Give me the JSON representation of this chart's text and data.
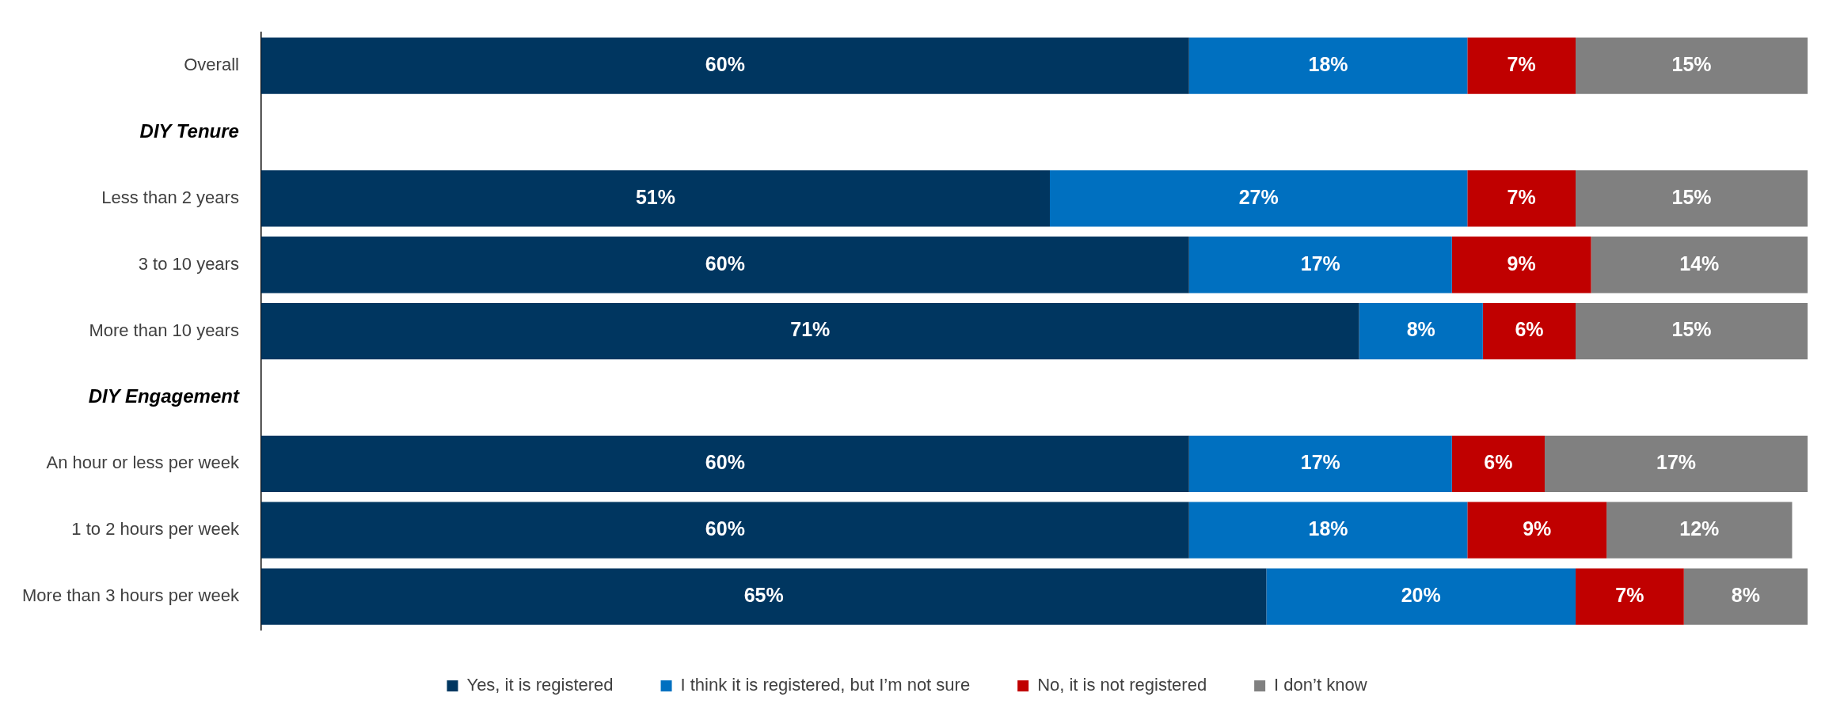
{
  "chart_data": {
    "type": "bar",
    "orientation": "horizontal",
    "stacked": true,
    "legend": "bottom",
    "tick_labels": "y",
    "categories": [
      "Overall",
      "DIY Tenure",
      "Less than 2 years",
      "3 to 10 years",
      "More than 10 years",
      "DIY Engagement",
      "An hour or less per week",
      "1 to 2 hours per week",
      "More than 3 hours per week"
    ],
    "series": [
      {
        "name": "Yes, it is registered",
        "color": "#003660",
        "values": [
          60,
          null,
          51,
          60,
          71,
          null,
          60,
          60,
          65
        ],
        "value_labels": [
          "60%",
          null,
          "51%",
          "60%",
          "71%",
          null,
          "60%",
          "60%",
          "65%"
        ]
      },
      {
        "name": "I think it is registered, but I’m not sure",
        "color": "#0070c0",
        "values": [
          18,
          null,
          27,
          17,
          8,
          null,
          17,
          18,
          20
        ],
        "value_labels": [
          "18%",
          null,
          "27%",
          "17%",
          "8%",
          null,
          "17%",
          "18%",
          "20%"
        ]
      },
      {
        "name": "No, it is not registered",
        "color": "#c00000",
        "values": [
          7,
          null,
          7,
          9,
          6,
          null,
          6,
          9,
          7
        ],
        "value_labels": [
          "7%",
          null,
          "7%",
          "9%",
          "6%",
          null,
          "6%",
          "9%",
          "7%"
        ]
      },
      {
        "name": "I don’t know",
        "color": "#808080",
        "values": [
          15,
          null,
          15,
          14,
          15,
          null,
          17,
          12,
          8
        ],
        "value_labels": [
          "15%",
          null,
          "15%",
          "14%",
          "15%",
          null,
          "17%",
          "12%",
          "8%"
        ]
      }
    ]
  }
}
